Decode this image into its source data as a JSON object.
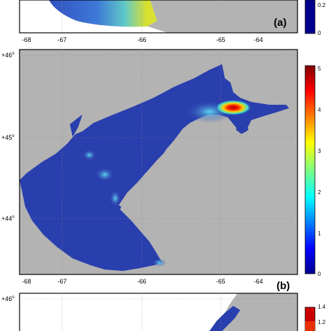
{
  "panels": {
    "a": {
      "label": "(a)",
      "x_ticks": [
        "-68",
        "-67",
        "-66",
        "-65",
        "-64"
      ],
      "colorbar_ticks": [
        "0.2",
        "0"
      ]
    },
    "b": {
      "label": "(b)",
      "x_ticks": [
        "-68",
        "-67",
        "-66",
        "-65",
        "-64"
      ],
      "y_ticks": [
        {
          "value": "+46",
          "sup": "o"
        },
        {
          "value": "+45",
          "sup": "o"
        },
        {
          "value": "+44",
          "sup": "o"
        }
      ],
      "colorbar_ticks": [
        "5",
        "4",
        "3",
        "2",
        "1",
        "0"
      ]
    },
    "c": {
      "y_ticks": [
        {
          "value": "+46",
          "sup": "o"
        }
      ],
      "colorbar_ticks": [
        "1.4",
        "1.2"
      ]
    }
  },
  "colors": {
    "land": "#b3b3b3",
    "low": "#2a3fae",
    "mid": "#2db6e0",
    "high": "#cc0000"
  }
}
